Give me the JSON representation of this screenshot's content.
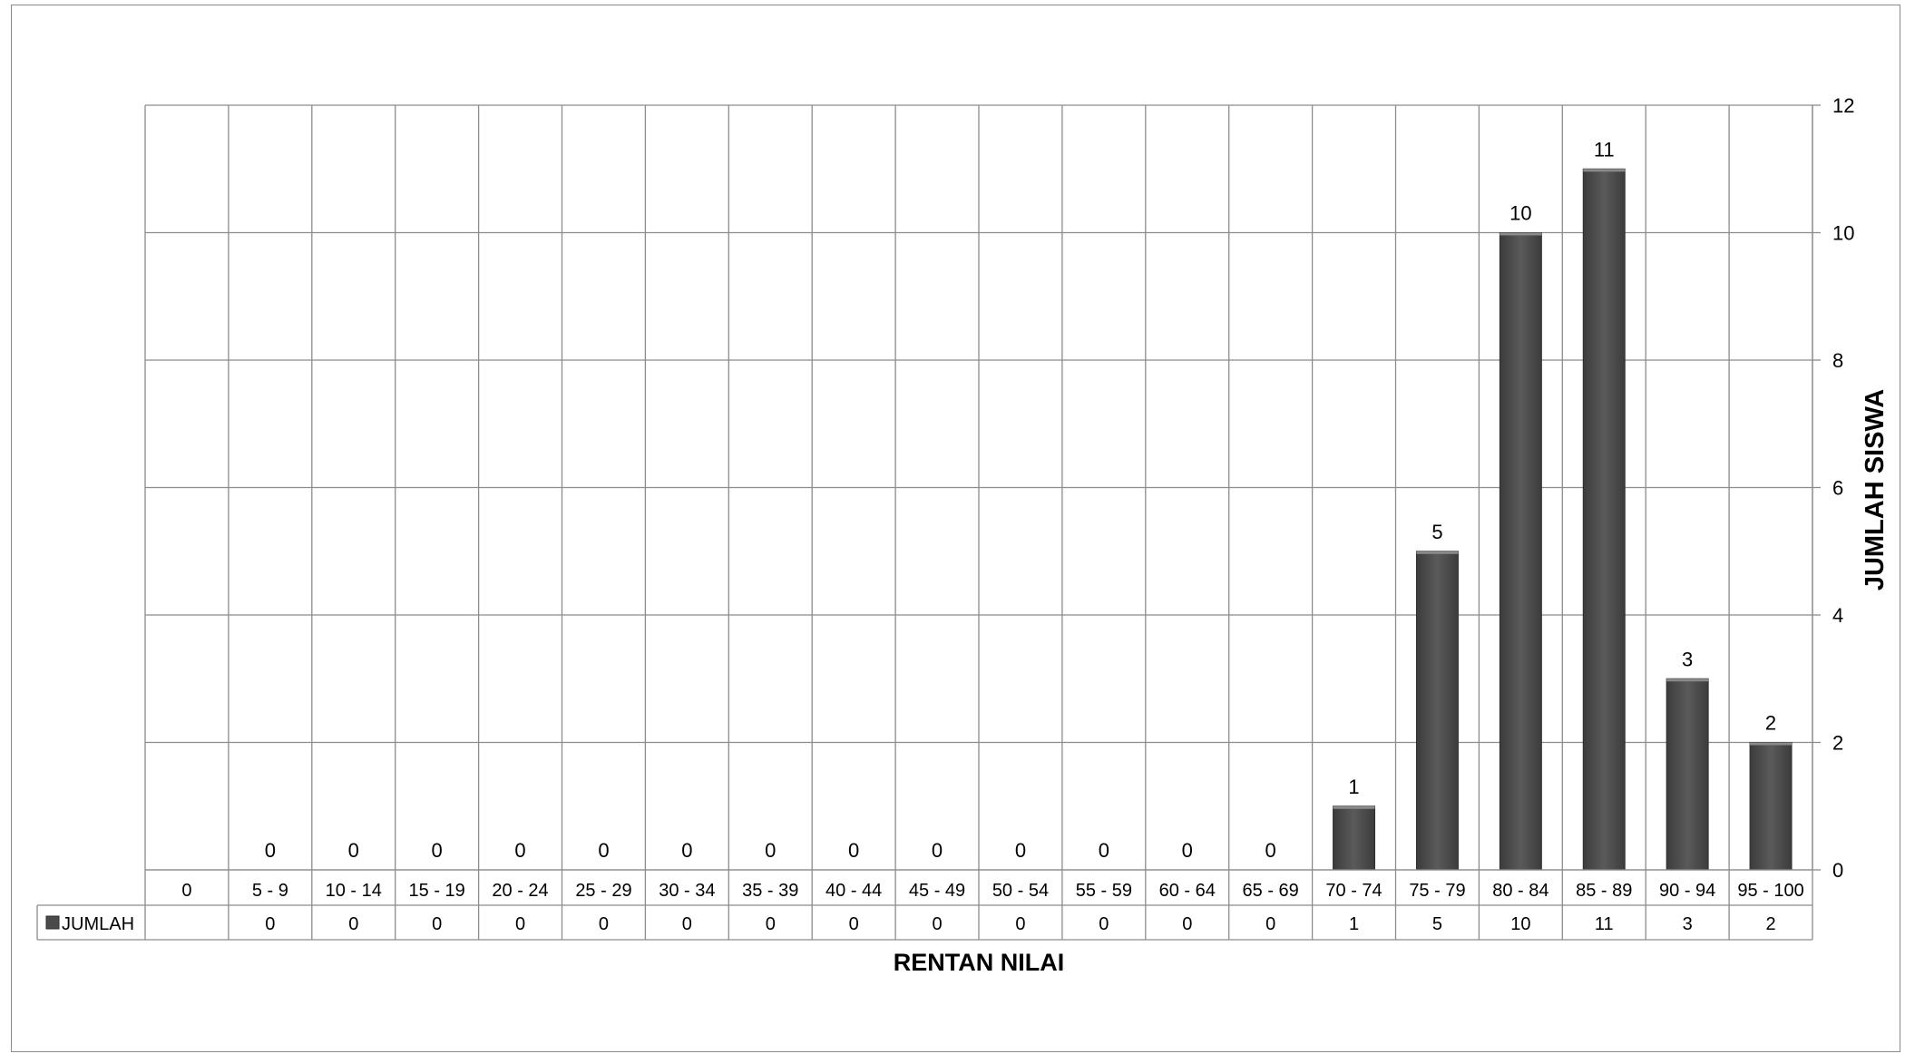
{
  "chart_data": {
    "type": "bar",
    "categories": [
      "0",
      "5 - 9",
      "10 - 14",
      "15 - 19",
      "20 - 24",
      "25 - 29",
      "30 - 34",
      "35 - 39",
      "40 - 44",
      "45 - 49",
      "50 - 54",
      "55 - 59",
      "60 - 64",
      "65 - 69",
      "70 - 74",
      "75 - 79",
      "80 - 84",
      "85 - 89",
      "90 - 94",
      "95 - 100"
    ],
    "series": [
      {
        "name": "JUMLAH",
        "values": [
          null,
          0,
          0,
          0,
          0,
          0,
          0,
          0,
          0,
          0,
          0,
          0,
          0,
          0,
          1,
          5,
          10,
          11,
          3,
          2
        ],
        "color": "#555555"
      }
    ],
    "xlabel": "RENTAN NILAI",
    "ylabel": "JUMLAH SISWA",
    "ylim": [
      0,
      12
    ],
    "yticks": [
      0,
      2,
      4,
      6,
      8,
      10,
      12
    ],
    "y_axis_side": "right",
    "grid": true,
    "data_table": true,
    "data_labels": true
  }
}
